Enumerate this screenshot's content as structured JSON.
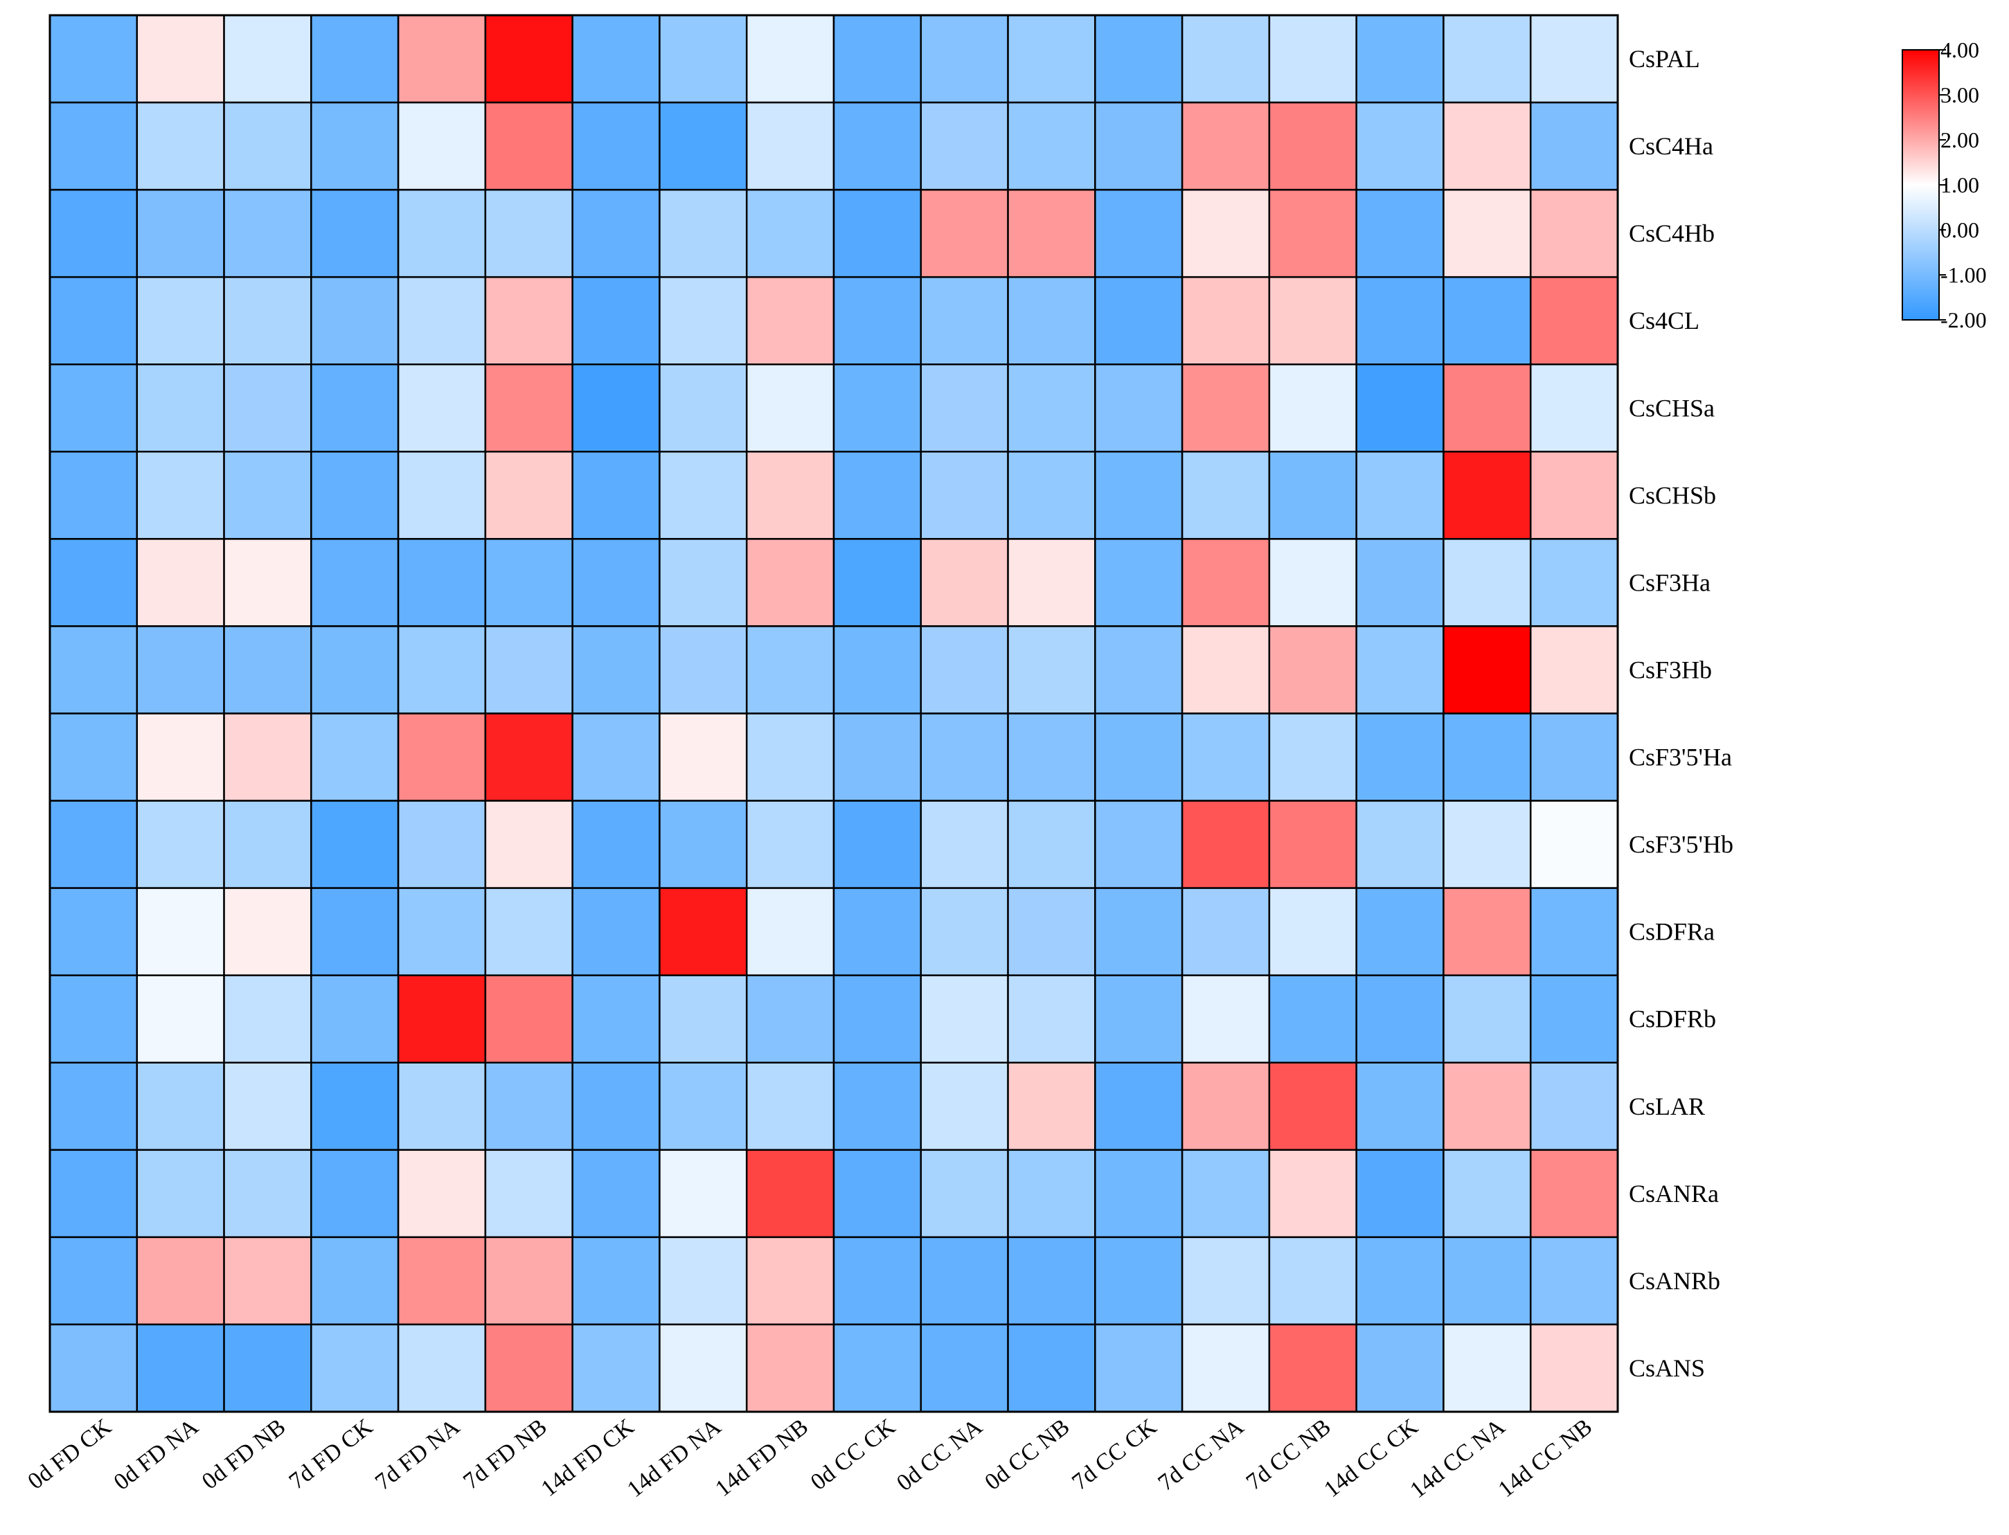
{
  "chart_data": {
    "type": "heatmap",
    "title": "",
    "xlabel": "",
    "ylabel": "",
    "columns": [
      "0d FD CK",
      "0d FD NA",
      "0d FD NB",
      "7d FD CK",
      "7d FD NA",
      "7d FD NB",
      "14d FD CK",
      "14d FD NA",
      "14d FD NB",
      "0d CC CK",
      "0d CC NA",
      "0d CC NB",
      "7d CC CK",
      "7d CC NA",
      "7d CC NB",
      "14d CC CK",
      "14d CC NA",
      "14d CC NB"
    ],
    "rows": [
      "CsPAL",
      "CsC4Ha",
      "CsC4Hb",
      "Cs4CL",
      "CsCHSa",
      "CsCHSb",
      "CsF3Ha",
      "CsF3Hb",
      "CsF3'5'Ha",
      "CsF3'5'Hb",
      "CsDFRa",
      "CsDFRb",
      "CsLAR",
      "CsANRa",
      "CsANRb",
      "CsANS"
    ],
    "values": [
      [
        -1.2,
        1.3,
        0.4,
        -1.3,
        2.1,
        3.8,
        -1.2,
        -0.6,
        0.6,
        -1.3,
        -0.8,
        -0.5,
        -1.2,
        -0.2,
        0.2,
        -1.1,
        -0.1,
        0.3
      ],
      [
        -1.3,
        -0.1,
        -0.3,
        -1.0,
        0.6,
        2.6,
        -1.4,
        -1.6,
        0.3,
        -1.3,
        -0.4,
        -0.6,
        -0.9,
        2.2,
        2.5,
        -0.6,
        1.5,
        -0.9
      ],
      [
        -1.5,
        -0.9,
        -0.8,
        -1.4,
        -0.3,
        -0.2,
        -1.3,
        -0.2,
        -0.5,
        -1.5,
        2.2,
        2.2,
        -1.3,
        1.3,
        2.4,
        -1.3,
        1.3,
        1.8
      ],
      [
        -1.4,
        -0.1,
        -0.2,
        -0.9,
        0.0,
        1.8,
        -1.5,
        0.0,
        1.8,
        -1.3,
        -0.7,
        -0.8,
        -1.4,
        1.7,
        1.6,
        -1.4,
        -1.4,
        2.6
      ],
      [
        -1.2,
        -0.3,
        -0.4,
        -1.3,
        0.3,
        2.4,
        -1.8,
        -0.2,
        0.6,
        -1.2,
        -0.4,
        -0.6,
        -0.8,
        2.3,
        0.6,
        -1.8,
        2.5,
        0.4
      ],
      [
        -1.3,
        -0.1,
        -0.6,
        -1.3,
        0.1,
        1.6,
        -1.4,
        -0.1,
        1.6,
        -1.3,
        -0.4,
        -0.6,
        -1.1,
        -0.3,
        -1.0,
        -0.6,
        3.7,
        1.8
      ],
      [
        -1.5,
        1.3,
        1.2,
        -1.3,
        -1.3,
        -1.1,
        -1.3,
        -0.2,
        1.9,
        -1.6,
        1.6,
        1.3,
        -1.1,
        2.4,
        0.6,
        -0.9,
        0.1,
        -0.5
      ],
      [
        -1.0,
        -0.9,
        -0.9,
        -1.0,
        -0.5,
        -0.4,
        -1.0,
        -0.4,
        -0.6,
        -1.1,
        -0.4,
        -0.2,
        -0.8,
        1.4,
        2.0,
        -0.6,
        4.0,
        1.4
      ],
      [
        -1.0,
        1.2,
        1.5,
        -0.6,
        2.4,
        3.6,
        -0.8,
        1.2,
        -0.1,
        -0.9,
        -0.8,
        -0.8,
        -1.0,
        -0.6,
        -0.1,
        -1.2,
        -1.2,
        -0.9
      ],
      [
        -1.4,
        -0.1,
        -0.3,
        -1.6,
        -0.4,
        1.3,
        -1.4,
        -1.0,
        -0.1,
        -1.5,
        0.0,
        -0.3,
        -0.8,
        3.0,
        2.6,
        -0.3,
        0.3,
        0.9
      ],
      [
        -1.2,
        0.8,
        1.2,
        -1.4,
        -0.6,
        -0.1,
        -1.3,
        3.7,
        0.6,
        -1.3,
        -0.2,
        -0.4,
        -1.0,
        -0.4,
        0.4,
        -1.2,
        2.3,
        -1.1
      ],
      [
        -1.2,
        0.8,
        0.1,
        -1.0,
        3.7,
        2.6,
        -1.1,
        -0.2,
        -0.8,
        -1.3,
        0.3,
        0.0,
        -1.0,
        0.6,
        -1.2,
        -1.3,
        -0.3,
        -1.2
      ],
      [
        -1.3,
        -0.3,
        0.2,
        -1.6,
        -0.2,
        -0.8,
        -1.3,
        -0.6,
        -0.1,
        -1.3,
        0.2,
        1.6,
        -1.4,
        2.0,
        3.0,
        -1.0,
        1.9,
        -0.4
      ],
      [
        -1.4,
        -0.3,
        -0.2,
        -1.4,
        1.3,
        0.1,
        -1.3,
        0.7,
        3.2,
        -1.4,
        -0.3,
        -0.5,
        -1.1,
        -0.6,
        1.5,
        -1.5,
        -0.3,
        2.4
      ],
      [
        -1.3,
        2.0,
        1.8,
        -1.0,
        2.3,
        2.0,
        -1.1,
        0.2,
        1.7,
        -1.3,
        -1.3,
        -1.3,
        -1.2,
        0.1,
        -0.1,
        -1.1,
        -1.0,
        -0.8
      ],
      [
        -0.9,
        -1.5,
        -1.5,
        -0.6,
        0.1,
        2.5,
        -0.7,
        0.6,
        1.9,
        -1.1,
        -1.3,
        -1.4,
        -0.8,
        0.6,
        2.8,
        -0.9,
        0.6,
        1.5
      ]
    ],
    "colorbar": {
      "min": -2,
      "max": 4,
      "ticks": [
        "4.00",
        "3.00",
        "2.00",
        "1.00",
        "0.00",
        "-1.00",
        "-2.00"
      ],
      "tick_values": [
        4,
        3,
        2,
        1,
        0,
        -1,
        -2
      ],
      "colors": {
        "low": "#3399ff",
        "mid": "#ffffff",
        "high": "#ff0000"
      },
      "mid_value": 1
    },
    "grid": true,
    "legend_placement": "right"
  }
}
